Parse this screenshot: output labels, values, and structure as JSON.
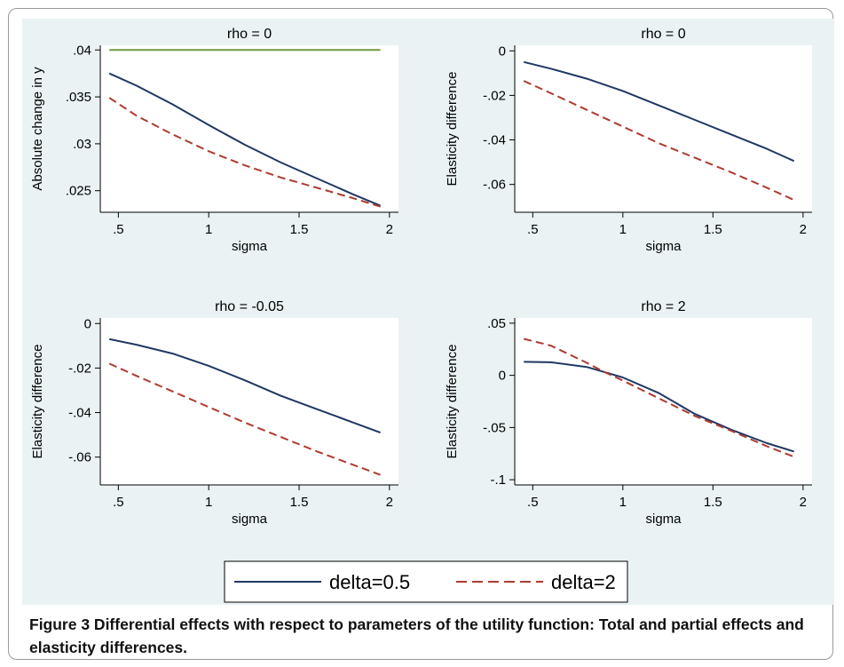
{
  "colors": {
    "background": "#eaf2f3",
    "frame": "#9a9a9a"
  },
  "caption": "Figure 3 Differential effects with respect to parameters of the utility function: Total and partial effects and elasticity differences.",
  "legend": [
    {
      "label": "delta=0.5",
      "color": "#1f3864",
      "dash": "solid"
    },
    {
      "label": "delta=2",
      "color": "#b03a2e",
      "dash": "dashed"
    }
  ],
  "chart_data": [
    {
      "type": "line",
      "title": "rho = 0",
      "xlabel": "sigma",
      "ylabel": "Absolute change in y",
      "xlim": [
        0.4,
        2.05
      ],
      "ylim": [
        0.0227,
        0.0405
      ],
      "xticks": [
        0.5,
        1,
        1.5,
        2
      ],
      "xtick_labels": [
        ".5",
        "1",
        "1.5",
        "2"
      ],
      "yticks": [
        0.025,
        0.03,
        0.035,
        0.04
      ],
      "ytick_labels": [
        ".025",
        ".03",
        ".035",
        ".04"
      ],
      "x": [
        0.45,
        0.6,
        0.8,
        1.0,
        1.2,
        1.4,
        1.6,
        1.8,
        1.95
      ],
      "series": [
        {
          "name": "delta=0.5",
          "color": "#1f3864",
          "dash": "solid",
          "values": [
            0.0375,
            0.0362,
            0.0342,
            0.032,
            0.0299,
            0.028,
            0.0263,
            0.0246,
            0.0234
          ]
        },
        {
          "name": "delta=2",
          "color": "#b03a2e",
          "dash": "dashed",
          "values": [
            0.0349,
            0.033,
            0.031,
            0.0292,
            0.0277,
            0.0264,
            0.0253,
            0.0242,
            0.0233
          ]
        },
        {
          "name": "",
          "color": "#6f9a3b",
          "dash": "solid",
          "values": [
            0.04,
            0.04,
            0.04,
            0.04,
            0.04,
            0.04,
            0.04,
            0.04,
            0.04
          ]
        }
      ]
    },
    {
      "type": "line",
      "title": "rho = 0",
      "xlabel": "sigma",
      "ylabel": "Elasticity difference",
      "xlim": [
        0.4,
        2.05
      ],
      "ylim": [
        -0.0725,
        0.0025
      ],
      "xticks": [
        0.5,
        1,
        1.5,
        2
      ],
      "xtick_labels": [
        ".5",
        "1",
        "1.5",
        "2"
      ],
      "yticks": [
        0,
        -0.02,
        -0.04,
        -0.06
      ],
      "ytick_labels": [
        "0",
        "-.02",
        "-.04",
        "-.06"
      ],
      "x": [
        0.45,
        0.6,
        0.8,
        1.0,
        1.2,
        1.4,
        1.6,
        1.8,
        1.95
      ],
      "series": [
        {
          "name": "delta=0.5",
          "color": "#1f3864",
          "dash": "solid",
          "values": [
            -0.005,
            -0.008,
            -0.0125,
            -0.018,
            -0.0245,
            -0.031,
            -0.0375,
            -0.044,
            -0.0495
          ]
        },
        {
          "name": "delta=2",
          "color": "#b03a2e",
          "dash": "dashed",
          "values": [
            -0.0135,
            -0.019,
            -0.0265,
            -0.034,
            -0.0415,
            -0.048,
            -0.0545,
            -0.0615,
            -0.067
          ]
        }
      ]
    },
    {
      "type": "line",
      "title": "rho = -0.05",
      "xlabel": "sigma",
      "ylabel": "Elasticity difference",
      "xlim": [
        0.4,
        2.05
      ],
      "ylim": [
        -0.0725,
        0.0025
      ],
      "xticks": [
        0.5,
        1,
        1.5,
        2
      ],
      "xtick_labels": [
        ".5",
        "1",
        "1.5",
        "2"
      ],
      "yticks": [
        0,
        -0.02,
        -0.04,
        -0.06
      ],
      "ytick_labels": [
        "0",
        "-.02",
        "-.04",
        "-.06"
      ],
      "x": [
        0.45,
        0.6,
        0.8,
        1.0,
        1.2,
        1.4,
        1.6,
        1.8,
        1.95
      ],
      "series": [
        {
          "name": "delta=0.5",
          "color": "#1f3864",
          "dash": "solid",
          "values": [
            -0.007,
            -0.0095,
            -0.0135,
            -0.019,
            -0.0255,
            -0.0325,
            -0.0385,
            -0.0445,
            -0.049
          ]
        },
        {
          "name": "delta=2",
          "color": "#b03a2e",
          "dash": "dashed",
          "values": [
            -0.018,
            -0.0235,
            -0.0305,
            -0.0375,
            -0.0445,
            -0.051,
            -0.0575,
            -0.0635,
            -0.068
          ]
        }
      ]
    },
    {
      "type": "line",
      "title": "rho = 2",
      "xlabel": "sigma",
      "ylabel": "Elasticity difference",
      "xlim": [
        0.4,
        2.05
      ],
      "ylim": [
        -0.105,
        0.055
      ],
      "xticks": [
        0.5,
        1,
        1.5,
        2
      ],
      "xtick_labels": [
        ".5",
        "1",
        "1.5",
        "2"
      ],
      "yticks": [
        0.05,
        0,
        -0.05,
        -0.1
      ],
      "ytick_labels": [
        ".05",
        "0",
        "-.05",
        "-.1"
      ],
      "x": [
        0.45,
        0.6,
        0.8,
        0.9,
        1.0,
        1.2,
        1.4,
        1.6,
        1.8,
        1.95
      ],
      "series": [
        {
          "name": "delta=0.5",
          "color": "#1f3864",
          "dash": "solid",
          "values": [
            0.013,
            0.0125,
            0.008,
            0.003,
            -0.002,
            -0.017,
            -0.037,
            -0.052,
            -0.065,
            -0.073
          ]
        },
        {
          "name": "delta=2",
          "color": "#b03a2e",
          "dash": "dashed",
          "values": [
            0.035,
            0.0285,
            0.012,
            0.003,
            -0.005,
            -0.022,
            -0.039,
            -0.053,
            -0.068,
            -0.078
          ]
        }
      ]
    }
  ]
}
